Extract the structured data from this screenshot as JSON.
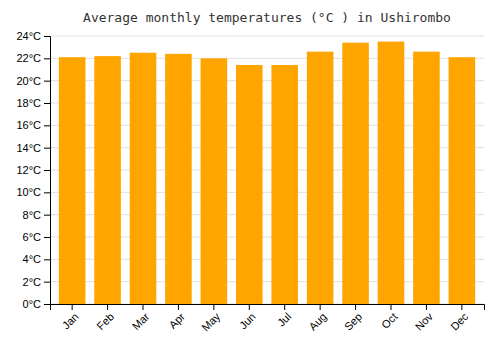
{
  "chart_data": {
    "type": "bar",
    "title": "Average monthly temperatures (°C ) in Ushirombo",
    "categories": [
      "Jan",
      "Feb",
      "Mar",
      "Apr",
      "May",
      "Jun",
      "Jul",
      "Aug",
      "Sep",
      "Oct",
      "Nov",
      "Dec"
    ],
    "values": [
      22.1,
      22.2,
      22.5,
      22.4,
      22.0,
      21.4,
      21.4,
      22.6,
      23.4,
      23.5,
      22.6,
      22.1
    ],
    "color": "#FFA500",
    "ylim": [
      0,
      24
    ],
    "yticks": [
      {
        "value": 0,
        "label": "0°C"
      },
      {
        "value": 2,
        "label": "2°C"
      },
      {
        "value": 4,
        "label": "4°C"
      },
      {
        "value": 6,
        "label": "6°C"
      },
      {
        "value": 8,
        "label": "8°C"
      },
      {
        "value": 10,
        "label": "10°C"
      },
      {
        "value": 12,
        "label": "12°C"
      },
      {
        "value": 14,
        "label": "14°C"
      },
      {
        "value": 16,
        "label": "16°C"
      },
      {
        "value": 18,
        "label": "18°C"
      },
      {
        "value": 20,
        "label": "20°C"
      },
      {
        "value": 22,
        "label": "22°C"
      },
      {
        "value": 24,
        "label": "24°C"
      }
    ],
    "grid": true
  }
}
